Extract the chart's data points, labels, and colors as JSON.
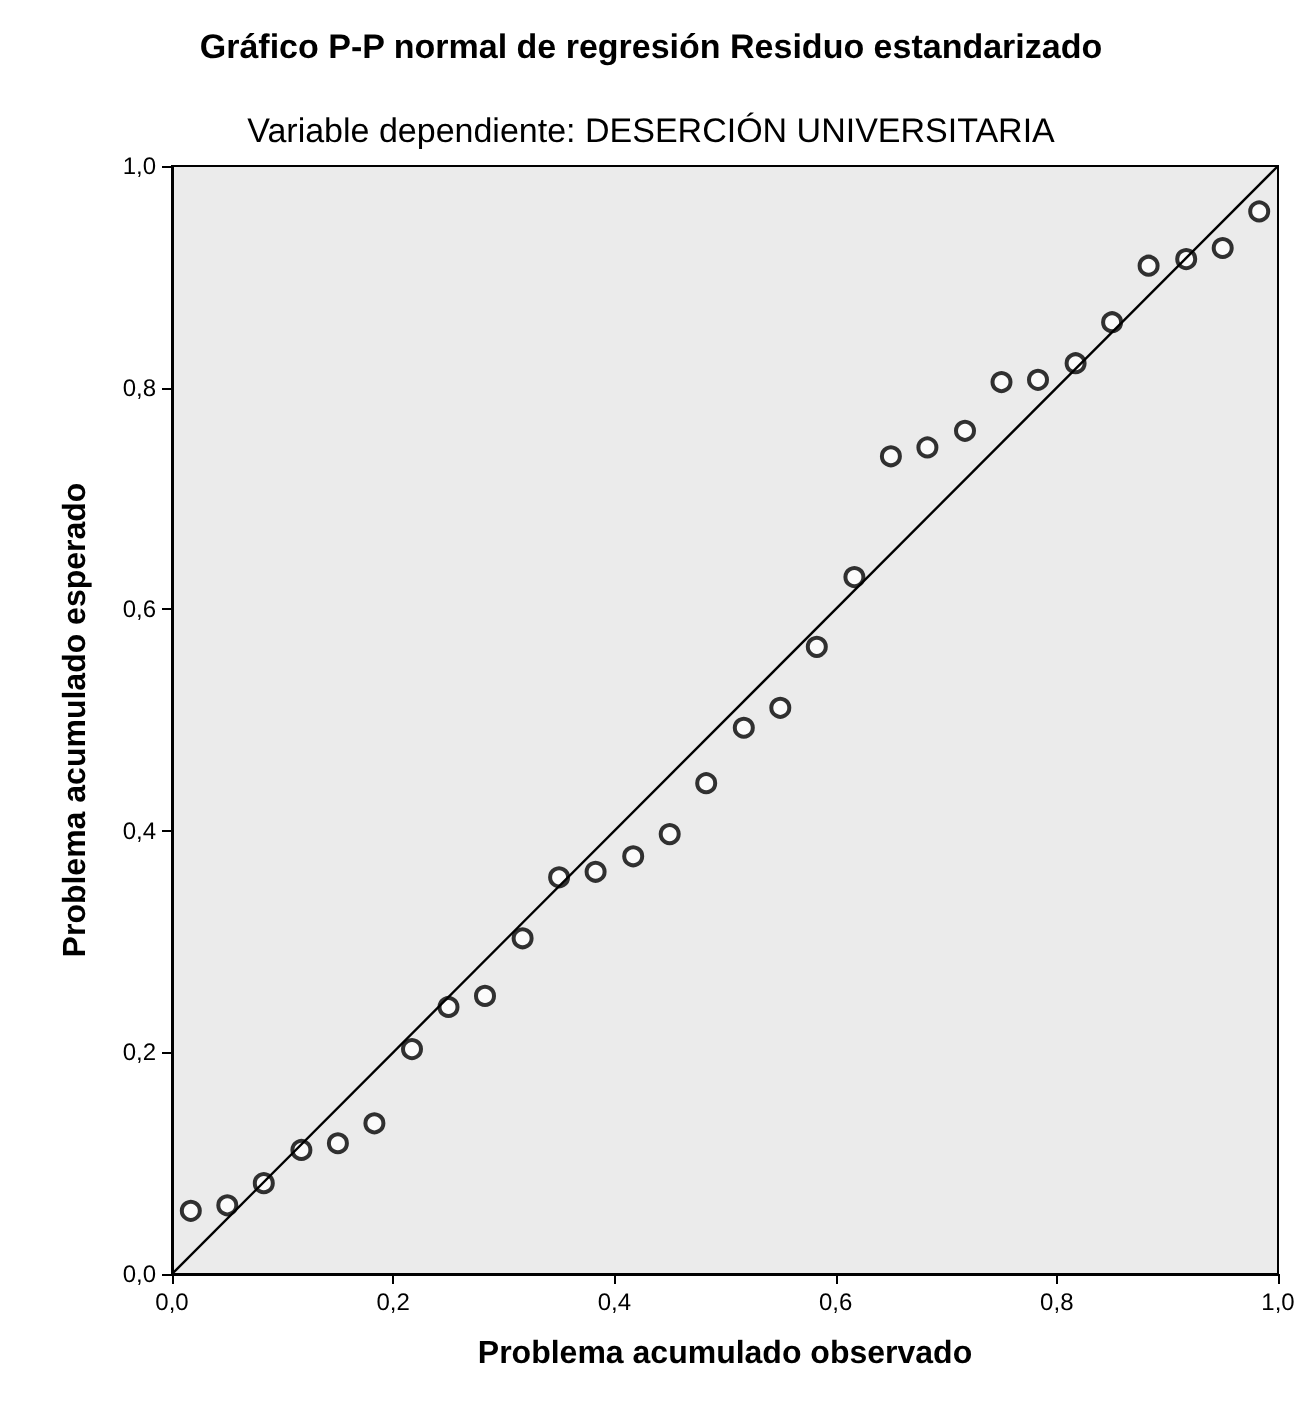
{
  "chart_data": {
    "type": "scatter",
    "title": "Gráfico P-P normal de regresión Residuo estandarizado",
    "subtitle": "Variable dependiente: DESERCIÓN UNIVERSITARIA",
    "xlabel": "Problema acumulado observado",
    "ylabel": "Problema acumulado esperado",
    "xlim": [
      0,
      1
    ],
    "ylim": [
      0,
      1
    ],
    "xticks": [
      {
        "value": 0,
        "label": "0,0"
      },
      {
        "value": 0.2,
        "label": "0,2"
      },
      {
        "value": 0.4,
        "label": "0,4"
      },
      {
        "value": 0.6,
        "label": "0,6"
      },
      {
        "value": 0.8,
        "label": "0,8"
      },
      {
        "value": 1,
        "label": "1,0"
      }
    ],
    "yticks": [
      {
        "value": 0,
        "label": "0,0"
      },
      {
        "value": 0.2,
        "label": "0,2"
      },
      {
        "value": 0.4,
        "label": "0,4"
      },
      {
        "value": 0.6,
        "label": "0,6"
      },
      {
        "value": 0.8,
        "label": "0,8"
      },
      {
        "value": 1,
        "label": "1,0"
      }
    ],
    "grid": false,
    "series": [
      {
        "marker": "circle",
        "color": "#000000",
        "x": [
          0.017,
          0.05,
          0.083,
          0.117,
          0.15,
          0.183,
          0.217,
          0.25,
          0.283,
          0.317,
          0.35,
          0.383,
          0.417,
          0.45,
          0.483,
          0.517,
          0.55,
          0.583,
          0.617,
          0.65,
          0.683,
          0.717,
          0.75,
          0.783,
          0.817,
          0.85,
          0.883,
          0.917,
          0.95,
          0.983
        ],
        "values": [
          0.057,
          0.062,
          0.082,
          0.112,
          0.118,
          0.136,
          0.203,
          0.241,
          0.251,
          0.303,
          0.358,
          0.363,
          0.377,
          0.397,
          0.443,
          0.493,
          0.511,
          0.566,
          0.629,
          0.738,
          0.746,
          0.761,
          0.805,
          0.807,
          0.822,
          0.859,
          0.91,
          0.916,
          0.926,
          0.959
        ]
      },
      {
        "type": "line",
        "marker": "none",
        "color": "#000000",
        "x": [
          0,
          1
        ],
        "values": [
          0,
          1
        ]
      }
    ]
  }
}
